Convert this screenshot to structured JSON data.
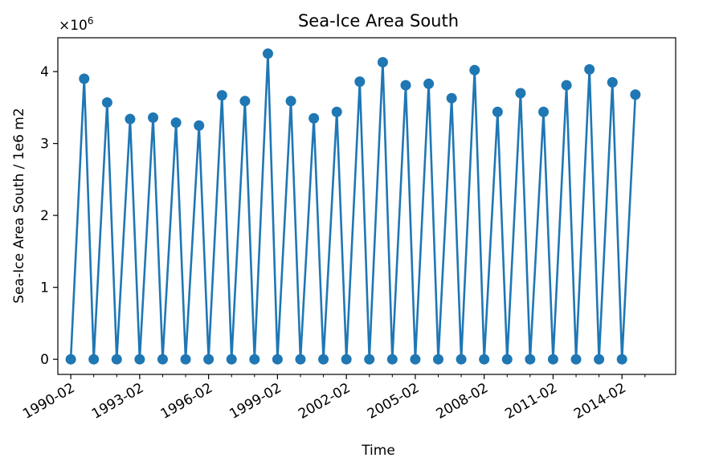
{
  "chart_data": {
    "type": "line",
    "title": "Sea-Ice Area South",
    "xlabel": "Time",
    "ylabel": "Sea-Ice Area South / 1e6 m2",
    "offset_label_base": "×10",
    "offset_label_exp": "6",
    "ylim": [
      -0.21,
      4.47
    ],
    "y_ticks": [
      0,
      1,
      2,
      3,
      4
    ],
    "y_tick_labels": [
      "0",
      "1",
      "2",
      "3",
      "4"
    ],
    "x_tick_labels": [
      "1990-02",
      "1993-02",
      "1996-02",
      "1999-02",
      "2002-02",
      "2005-02",
      "2008-02",
      "2011-02",
      "2014-02"
    ],
    "grid": false,
    "legend": "none",
    "color": "#1f77b4",
    "series": [
      {
        "x": [
          "1990-02",
          "1990-09",
          "1991-02",
          "1991-09",
          "1992-02",
          "1992-09",
          "1993-02",
          "1993-09",
          "1994-02",
          "1994-09",
          "1995-02",
          "1995-09",
          "1996-02",
          "1996-09",
          "1997-02",
          "1997-09",
          "1998-02",
          "1998-09",
          "1999-02",
          "1999-09",
          "2000-02",
          "2000-09",
          "2001-02",
          "2001-09",
          "2002-02",
          "2002-09",
          "2003-02",
          "2003-09",
          "2004-02",
          "2004-09",
          "2005-02",
          "2005-09",
          "2006-02",
          "2006-09",
          "2007-02",
          "2007-09",
          "2008-02",
          "2008-09",
          "2009-02",
          "2009-09",
          "2010-02",
          "2010-09",
          "2011-02",
          "2011-09",
          "2012-02",
          "2012-09",
          "2013-02",
          "2013-09",
          "2014-02",
          "2014-09"
        ],
        "values": [
          0,
          3.9,
          0,
          3.57,
          0,
          3.34,
          0,
          3.36,
          0,
          3.29,
          0,
          3.25,
          0,
          3.67,
          0,
          3.59,
          0,
          4.25,
          0,
          3.59,
          0,
          3.35,
          0,
          3.44,
          0,
          3.86,
          0,
          4.13,
          0,
          3.81,
          0,
          3.83,
          0,
          3.63,
          0,
          4.02,
          0,
          3.44,
          0,
          3.7,
          0,
          3.44,
          0,
          3.81,
          0,
          4.03,
          0,
          3.85,
          0,
          3.68
        ]
      }
    ]
  }
}
